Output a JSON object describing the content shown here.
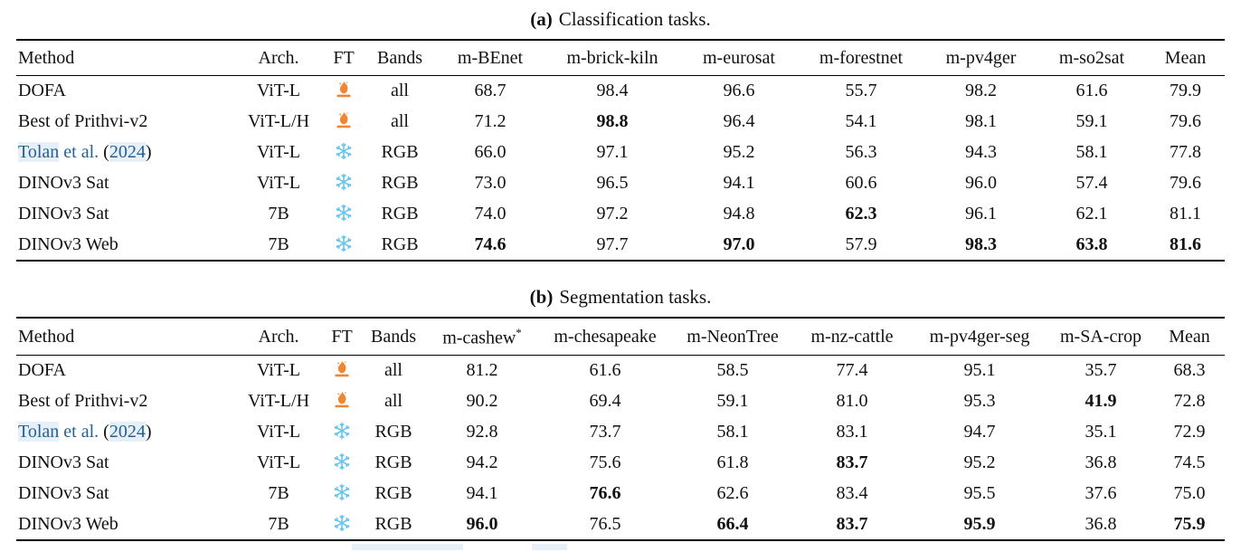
{
  "colors": {
    "flame": "#f08532",
    "snowflake": "#62c3ee",
    "link_text": "#26618f",
    "link_highlight": "#e7f0f9",
    "rule": "#000000"
  },
  "icons": {
    "flame": "flame-icon",
    "snowflake": "snowflake-icon"
  },
  "tables": [
    {
      "id": "classification",
      "caption_label": "(a)",
      "caption_text": "Classification tasks.",
      "columns": [
        "Method",
        "Arch.",
        "FT",
        "Bands",
        "m-BEnet",
        "m-brick-kiln",
        "m-eurosat",
        "m-forestnet",
        "m-pv4ger",
        "m-so2sat",
        "Mean"
      ],
      "rows": [
        {
          "method": "DOFA",
          "arch": "ViT-L",
          "ft": "flame",
          "bands": "all",
          "values": [
            "68.7",
            "98.4",
            "96.6",
            "55.7",
            "98.2",
            "61.6",
            "79.9"
          ],
          "bold": []
        },
        {
          "method": "Best of Prithvi-v2",
          "arch": "ViT-L/H",
          "ft": "flame",
          "bands": "all",
          "values": [
            "71.2",
            "98.8",
            "96.4",
            "54.1",
            "98.1",
            "59.1",
            "79.6"
          ],
          "bold": [
            1
          ]
        },
        {
          "method": "Tolan et al. (2024)",
          "arch": "ViT-L",
          "ft": "snowflake",
          "bands": "RGB",
          "method_segments": [
            {
              "text": "Tolan",
              "color": "link",
              "box": true
            },
            {
              "text": " et al. ",
              "color": "link",
              "box": false
            },
            {
              "text": "(",
              "color": "text",
              "box": false
            },
            {
              "text": "2024",
              "color": "link",
              "box": true
            },
            {
              "text": ")",
              "color": "text",
              "box": false
            }
          ],
          "values": [
            "66.0",
            "97.1",
            "95.2",
            "56.3",
            "94.3",
            "58.1",
            "77.8"
          ],
          "bold": []
        },
        {
          "method": "DINOv3 Sat",
          "arch": "ViT-L",
          "ft": "snowflake",
          "bands": "RGB",
          "values": [
            "73.0",
            "96.5",
            "94.1",
            "60.6",
            "96.0",
            "57.4",
            "79.6"
          ],
          "bold": []
        },
        {
          "method": "DINOv3 Sat",
          "arch": "7B",
          "ft": "snowflake",
          "bands": "RGB",
          "values": [
            "74.0",
            "97.2",
            "94.8",
            "62.3",
            "96.1",
            "62.1",
            "81.1"
          ],
          "bold": [
            3
          ]
        },
        {
          "method": "DINOv3 Web",
          "arch": "7B",
          "ft": "snowflake",
          "bands": "RGB",
          "values": [
            "74.6",
            "97.7",
            "97.0",
            "57.9",
            "98.3",
            "63.8",
            "81.6"
          ],
          "bold": [
            0,
            2,
            4,
            5,
            6
          ]
        }
      ]
    },
    {
      "id": "segmentation",
      "caption_label": "(b)",
      "caption_text": "Segmentation tasks.",
      "columns": [
        "Method",
        "Arch.",
        "FT",
        "Bands",
        "m-cashew*",
        "m-chesapeake",
        "m-NeonTree",
        "m-nz-cattle",
        "m-pv4ger-seg",
        "m-SA-crop",
        "Mean"
      ],
      "rows": [
        {
          "method": "DOFA",
          "arch": "ViT-L",
          "ft": "flame",
          "bands": "all",
          "values": [
            "81.2",
            "61.6",
            "58.5",
            "77.4",
            "95.1",
            "35.7",
            "68.3"
          ],
          "bold": []
        },
        {
          "method": "Best of Prithvi-v2",
          "arch": "ViT-L/H",
          "ft": "flame",
          "bands": "all",
          "values": [
            "90.2",
            "69.4",
            "59.1",
            "81.0",
            "95.3",
            "41.9",
            "72.8"
          ],
          "bold": [
            5
          ]
        },
        {
          "method": "Tolan et al. (2024)",
          "arch": "ViT-L",
          "ft": "snowflake",
          "bands": "RGB",
          "method_segments": [
            {
              "text": "Tolan",
              "color": "link",
              "box": true
            },
            {
              "text": " et al. ",
              "color": "link",
              "box": false
            },
            {
              "text": "(",
              "color": "text",
              "box": false
            },
            {
              "text": "2024",
              "color": "link",
              "box": true
            },
            {
              "text": ")",
              "color": "text",
              "box": false
            }
          ],
          "values": [
            "92.8",
            "73.7",
            "58.1",
            "83.1",
            "94.7",
            "35.1",
            "72.9"
          ],
          "bold": []
        },
        {
          "method": "DINOv3 Sat",
          "arch": "ViT-L",
          "ft": "snowflake",
          "bands": "RGB",
          "values": [
            "94.2",
            "75.6",
            "61.8",
            "83.7",
            "95.2",
            "36.8",
            "74.5"
          ],
          "bold": [
            3
          ]
        },
        {
          "method": "DINOv3 Sat",
          "arch": "7B",
          "ft": "snowflake",
          "bands": "RGB",
          "values": [
            "94.1",
            "76.6",
            "62.6",
            "83.4",
            "95.5",
            "37.6",
            "75.0"
          ],
          "bold": [
            1
          ]
        },
        {
          "method": "DINOv3 Web",
          "arch": "7B",
          "ft": "snowflake",
          "bands": "RGB",
          "values": [
            "96.0",
            "76.5",
            "66.4",
            "83.7",
            "95.9",
            "36.8",
            "75.9"
          ],
          "bold": [
            0,
            2,
            3,
            4,
            6
          ]
        }
      ]
    }
  ]
}
